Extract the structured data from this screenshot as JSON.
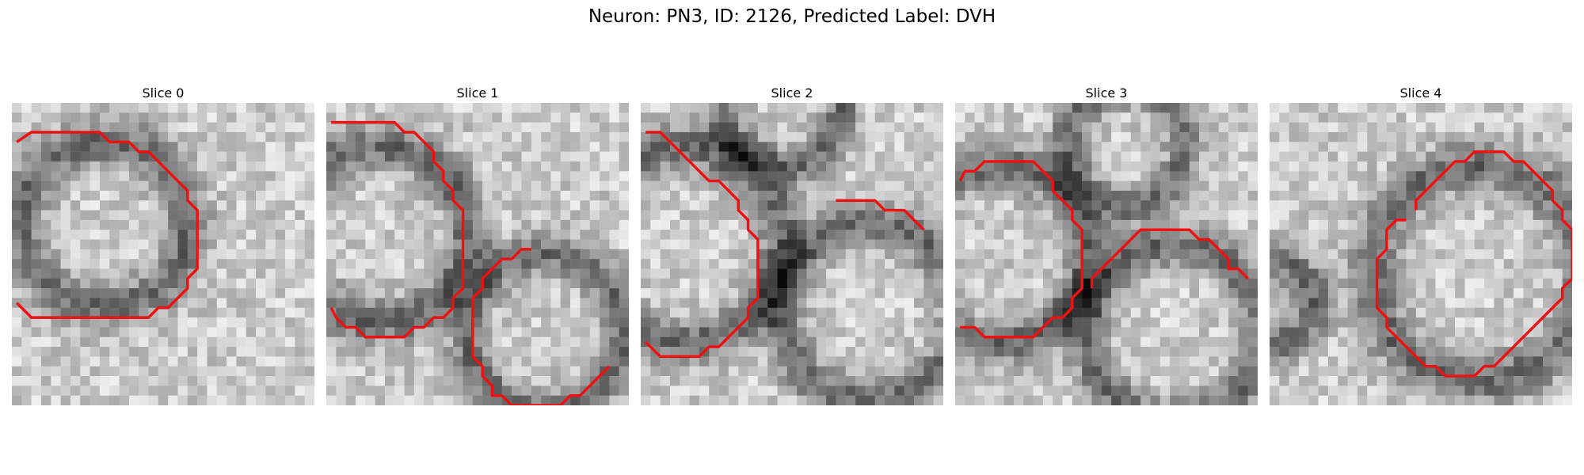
{
  "figure": {
    "title": "Neuron: PN3, ID: 2126, Predicted Label: DVH",
    "contour_color": "#ee1111"
  },
  "slices": [
    {
      "title": "Slice 0",
      "contour": [
        [
          0.5,
          4
        ],
        [
          2,
          3
        ],
        [
          9,
          3
        ],
        [
          10,
          4
        ],
        [
          12,
          4
        ],
        [
          13,
          5
        ],
        [
          14,
          5
        ],
        [
          16,
          7
        ],
        [
          18,
          9
        ],
        [
          18,
          10
        ],
        [
          19,
          11
        ],
        [
          19,
          17
        ],
        [
          18,
          18
        ],
        [
          18,
          19
        ],
        [
          16,
          21
        ],
        [
          15,
          21
        ],
        [
          14,
          22
        ],
        [
          13,
          22
        ],
        [
          12,
          22
        ],
        [
          2,
          22
        ],
        [
          1,
          21
        ],
        [
          0.5,
          20.5
        ]
      ]
    },
    {
      "title": "Slice 1",
      "contour": [
        [
          0.5,
          2
        ],
        [
          7,
          2
        ],
        [
          8,
          3
        ],
        [
          9,
          3
        ],
        [
          10,
          4
        ],
        [
          11,
          5
        ],
        [
          11,
          6
        ],
        [
          12,
          7
        ],
        [
          12,
          8
        ],
        [
          13,
          9
        ],
        [
          13,
          10
        ],
        [
          14,
          11
        ],
        [
          14,
          19
        ],
        [
          13,
          20
        ],
        [
          13,
          21
        ],
        [
          12,
          22
        ],
        [
          11,
          22
        ],
        [
          10,
          23
        ],
        [
          9,
          23
        ],
        [
          8,
          24
        ],
        [
          4,
          24
        ],
        [
          3,
          23
        ],
        [
          2,
          23
        ],
        [
          1,
          22
        ],
        [
          0.5,
          21
        ]
      ],
      "contour2": [
        [
          21,
          15
        ],
        [
          20,
          15
        ],
        [
          19,
          16
        ],
        [
          18,
          16
        ],
        [
          17,
          17
        ],
        [
          16,
          18
        ],
        [
          16,
          19
        ],
        [
          15,
          20
        ],
        [
          15,
          24
        ],
        [
          15,
          26
        ],
        [
          16,
          27
        ],
        [
          16,
          28
        ],
        [
          17,
          29
        ],
        [
          17,
          30
        ],
        [
          18,
          30
        ],
        [
          19,
          31
        ],
        [
          24,
          31
        ],
        [
          25,
          30
        ],
        [
          26,
          30
        ],
        [
          27,
          29
        ],
        [
          28,
          28
        ],
        [
          29,
          27
        ]
      ]
    },
    {
      "title": "Slice 2",
      "contour": [
        [
          0.5,
          3
        ],
        [
          2,
          3
        ],
        [
          3,
          4
        ],
        [
          4,
          5
        ],
        [
          5,
          6
        ],
        [
          6,
          7
        ],
        [
          7,
          8
        ],
        [
          8,
          8
        ],
        [
          9,
          9
        ],
        [
          10,
          10
        ],
        [
          10,
          11
        ],
        [
          11,
          12
        ],
        [
          11,
          13
        ],
        [
          12,
          14
        ],
        [
          12,
          20
        ],
        [
          11,
          21
        ],
        [
          11,
          22
        ],
        [
          10,
          23
        ],
        [
          9,
          24
        ],
        [
          8,
          25
        ],
        [
          7,
          25
        ],
        [
          6,
          26
        ],
        [
          2,
          26
        ],
        [
          1,
          25
        ],
        [
          0.5,
          24.5
        ]
      ],
      "contour2": [
        [
          20,
          10
        ],
        [
          24,
          10
        ],
        [
          25,
          11
        ],
        [
          26,
          11
        ],
        [
          27,
          11
        ],
        [
          29,
          13
        ]
      ]
    },
    {
      "title": "Slice 3",
      "contour": [
        [
          0.5,
          8
        ],
        [
          1,
          7
        ],
        [
          2,
          7
        ],
        [
          3,
          6
        ],
        [
          8,
          6
        ],
        [
          9,
          7
        ],
        [
          10,
          8
        ],
        [
          10,
          9
        ],
        [
          11,
          10
        ],
        [
          12,
          11
        ],
        [
          12,
          12
        ],
        [
          13,
          13
        ],
        [
          13,
          19
        ],
        [
          12,
          20
        ],
        [
          12,
          21
        ],
        [
          11,
          22
        ],
        [
          10,
          22
        ],
        [
          9,
          23
        ],
        [
          8,
          24
        ],
        [
          3,
          24
        ],
        [
          2,
          23
        ],
        [
          0.5,
          23
        ]
      ],
      "contour2": [
        [
          14,
          19
        ],
        [
          14,
          18
        ],
        [
          15,
          17
        ],
        [
          16,
          16
        ],
        [
          17,
          15
        ],
        [
          18,
          14
        ],
        [
          19,
          13
        ],
        [
          24,
          13
        ],
        [
          25,
          14
        ],
        [
          26,
          14
        ],
        [
          27,
          15
        ],
        [
          28,
          16
        ],
        [
          28,
          17
        ],
        [
          29,
          17
        ],
        [
          30,
          18
        ]
      ]
    },
    {
      "title": "Slice 4",
      "contour": [
        [
          15,
          11
        ],
        [
          15,
          10
        ],
        [
          16,
          9
        ],
        [
          17,
          8
        ],
        [
          18,
          7
        ],
        [
          19,
          6
        ],
        [
          20,
          6
        ],
        [
          21,
          5
        ],
        [
          23,
          5
        ],
        [
          24,
          5
        ],
        [
          25,
          6
        ],
        [
          26,
          6
        ],
        [
          27,
          7
        ],
        [
          28,
          8
        ],
        [
          29,
          9
        ],
        [
          29,
          10
        ],
        [
          30,
          11
        ],
        [
          30,
          12
        ],
        [
          31,
          13
        ],
        [
          31,
          18
        ],
        [
          30,
          19
        ],
        [
          30,
          20
        ],
        [
          29,
          21
        ],
        [
          28,
          22
        ],
        [
          27,
          23
        ],
        [
          26,
          24
        ],
        [
          25,
          25
        ],
        [
          24,
          26
        ],
        [
          23,
          27
        ],
        [
          22,
          27
        ],
        [
          21,
          28
        ],
        [
          18,
          28
        ],
        [
          17,
          27
        ],
        [
          16,
          27
        ],
        [
          15,
          26
        ],
        [
          14,
          25
        ],
        [
          13,
          24
        ],
        [
          12,
          23
        ],
        [
          12,
          22
        ],
        [
          11,
          21
        ],
        [
          11,
          17
        ],
        [
          11,
          16
        ],
        [
          12,
          15
        ],
        [
          12,
          13
        ],
        [
          13,
          12
        ],
        [
          14,
          12
        ]
      ]
    }
  ]
}
